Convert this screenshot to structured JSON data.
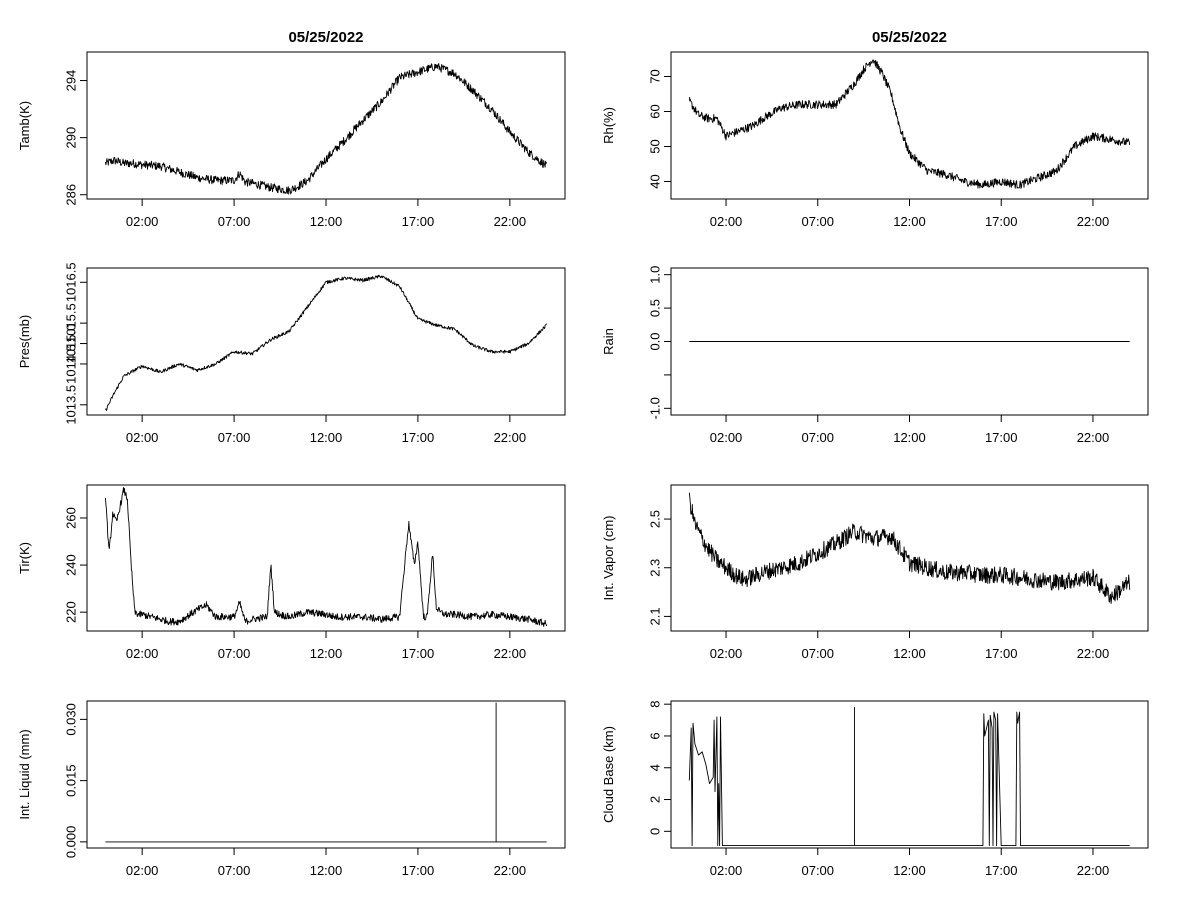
{
  "figure": {
    "date_title": "05/25/2022",
    "time_ticks": [
      "02:00",
      "07:00",
      "12:00",
      "17:00",
      "22:00"
    ]
  },
  "chart_data": [
    {
      "id": "tamb",
      "type": "line",
      "title": "05/25/2022",
      "ylabel": "Tamb(K)",
      "xlim": [
        -1,
        25
      ],
      "ylim": [
        285.7,
        296.0
      ],
      "yticks": [
        286,
        290,
        294
      ],
      "ytick_labels": [
        "286",
        "290",
        "294"
      ],
      "x": [
        0,
        0.5,
        1,
        1.5,
        2,
        3,
        4,
        5,
        6,
        7,
        7.3,
        7.6,
        8,
        9,
        10,
        10.5,
        11,
        12,
        13,
        14,
        15,
        16,
        17,
        18,
        19,
        20,
        21,
        22,
        23,
        24
      ],
      "values": [
        288.2,
        288.4,
        288.2,
        288.2,
        288.1,
        288.0,
        287.6,
        287.2,
        287.0,
        287.0,
        287.5,
        286.9,
        286.8,
        286.5,
        286.3,
        286.6,
        287.0,
        288.5,
        289.8,
        291.2,
        292.5,
        294.2,
        294.6,
        295.0,
        294.5,
        293.3,
        292.0,
        290.4,
        289.0,
        288.0
      ],
      "noise": 0.3
    },
    {
      "id": "rh",
      "type": "line",
      "title": "05/25/2022",
      "ylabel": "Rh(%)",
      "xlim": [
        -1,
        25
      ],
      "ylim": [
        35,
        77
      ],
      "yticks": [
        40,
        50,
        60,
        70
      ],
      "ytick_labels": [
        "40",
        "50",
        "60",
        "70"
      ],
      "x": [
        0,
        0.5,
        1,
        1.5,
        2,
        2.5,
        3,
        3.5,
        4,
        5,
        6,
        7,
        8,
        9,
        9.5,
        10,
        10.5,
        11,
        11.5,
        12,
        13,
        14,
        15,
        16,
        17,
        18,
        19,
        20,
        21,
        22,
        23,
        24
      ],
      "values": [
        63,
        59,
        58,
        58,
        53,
        54,
        55,
        56,
        58,
        61,
        62,
        62,
        62,
        68,
        72,
        75,
        71,
        65,
        55,
        48,
        43,
        42,
        40,
        39,
        40,
        39,
        41,
        43,
        50,
        53,
        52,
        51
      ],
      "noise": 1.2
    },
    {
      "id": "pres",
      "type": "line",
      "title": "",
      "ylabel": "Pres(mb)",
      "xlim": [
        -1,
        25
      ],
      "ylim": [
        1013.25,
        1016.85
      ],
      "yticks": [
        1013.5,
        1015.0,
        1016.5
      ],
      "ytick_labels": [
        "1013.5",
        "1015.0",
        "1016.5"
      ],
      "yticks_minor": [
        1014.5,
        1015.5
      ],
      "ytick_labels_minor": [
        "1014.5",
        "1015.5"
      ],
      "x": [
        0,
        0.5,
        1,
        2,
        3,
        4,
        5,
        6,
        7,
        8,
        9,
        10,
        11,
        12,
        13,
        14,
        15,
        16,
        17,
        18,
        19,
        20,
        21,
        22,
        23,
        24
      ],
      "values": [
        1013.35,
        1013.8,
        1014.2,
        1014.45,
        1014.3,
        1014.5,
        1014.35,
        1014.5,
        1014.8,
        1014.75,
        1015.1,
        1015.3,
        1015.9,
        1016.5,
        1016.6,
        1016.55,
        1016.65,
        1016.4,
        1015.6,
        1015.45,
        1015.35,
        1014.95,
        1014.8,
        1014.8,
        1015.0,
        1015.45
      ],
      "noise": 0.04
    },
    {
      "id": "rain",
      "type": "line",
      "title": "",
      "ylabel": "Rain",
      "xlim": [
        -1,
        25
      ],
      "ylim": [
        -1.1,
        1.1
      ],
      "yticks": [
        -1.0,
        -0.5,
        0.0,
        0.5,
        1.0
      ],
      "ytick_labels": [
        "-1.0",
        "",
        "0.0",
        "0.5",
        "1.0"
      ],
      "ytick_labels_right": [
        "",
        "",
        "",
        "",
        ""
      ],
      "x": [
        0,
        24
      ],
      "values": [
        0,
        0
      ],
      "noise": 0
    },
    {
      "id": "tir",
      "type": "line",
      "title": "",
      "ylabel": "Tir(K)",
      "xlim": [
        -1,
        25
      ],
      "ylim": [
        212,
        274
      ],
      "yticks": [
        220,
        240,
        260
      ],
      "ytick_labels": [
        "220",
        "240",
        "260"
      ],
      "x": [
        0,
        0.2,
        0.4,
        0.6,
        0.8,
        1.0,
        1.2,
        1.4,
        1.6,
        1.8,
        2.0,
        2.5,
        3,
        3.5,
        4,
        5,
        5.5,
        6,
        7,
        7.3,
        7.6,
        8,
        8.8,
        9,
        9.2,
        9.5,
        10,
        11,
        12,
        12.5,
        13,
        14,
        15,
        16,
        16.5,
        16.8,
        17,
        17.3,
        17.5,
        17.8,
        18,
        18.2,
        18.5,
        19,
        20,
        21,
        22,
        23,
        24
      ],
      "values": [
        270,
        245,
        262,
        258,
        265,
        272,
        268,
        240,
        220,
        219,
        219,
        218,
        217,
        216,
        216,
        221,
        223,
        218,
        218,
        224,
        216,
        217,
        218,
        240,
        220,
        219,
        218,
        220,
        219,
        218,
        218,
        218,
        217,
        218,
        258,
        240,
        250,
        218,
        218,
        245,
        222,
        220,
        219,
        219,
        218,
        219,
        218,
        217,
        215
      ],
      "noise": 1.5
    },
    {
      "id": "vapor",
      "type": "line",
      "title": "",
      "ylabel": "Int. Vapor (cm)",
      "xlim": [
        -1,
        25
      ],
      "ylim": [
        2.04,
        2.64
      ],
      "yticks": [
        2.1,
        2.3,
        2.5
      ],
      "ytick_labels": [
        "2.1",
        "2.3",
        "2.5"
      ],
      "x": [
        0,
        0.3,
        0.7,
        1,
        1.5,
        2,
        2.5,
        3,
        4,
        5,
        6,
        7,
        8,
        9,
        10,
        11,
        12,
        13,
        14,
        15,
        16,
        17,
        18,
        19,
        20,
        21,
        22,
        22.5,
        23,
        24
      ],
      "values": [
        2.58,
        2.48,
        2.42,
        2.38,
        2.33,
        2.3,
        2.27,
        2.25,
        2.28,
        2.3,
        2.32,
        2.36,
        2.4,
        2.45,
        2.42,
        2.43,
        2.32,
        2.3,
        2.28,
        2.28,
        2.27,
        2.27,
        2.26,
        2.25,
        2.24,
        2.25,
        2.26,
        2.22,
        2.18,
        2.24
      ],
      "noise": 0.035
    },
    {
      "id": "liquid",
      "type": "line",
      "title": "",
      "ylabel": "Int. Liquid (mm)",
      "xlim": [
        -1,
        25
      ],
      "ylim": [
        -0.0015,
        0.0345
      ],
      "yticks": [
        0.0,
        0.015,
        0.03
      ],
      "ytick_labels": [
        "0.000",
        "0.015",
        "0.030"
      ],
      "x": [
        0,
        21.25,
        21.25,
        21.25,
        24
      ],
      "values": [
        0,
        0,
        0.034,
        0,
        0
      ],
      "noise": 0
    },
    {
      "id": "cloud",
      "type": "line",
      "title": "",
      "ylabel": "Cloud Base (km)",
      "xlim": [
        -1,
        25
      ],
      "ylim": [
        -1.05,
        8.2
      ],
      "yticks": [
        0,
        2,
        4,
        6,
        8
      ],
      "ytick_labels": [
        "0",
        "2",
        "4",
        "6",
        "8"
      ],
      "x": [
        0,
        0.1,
        0.15,
        0.2,
        0.3,
        0.5,
        0.7,
        0.9,
        1.1,
        1.3,
        1.35,
        1.4,
        1.5,
        1.55,
        1.6,
        1.65,
        1.7,
        1.8,
        9.0,
        9.0,
        9.0,
        16.0,
        16.05,
        16.1,
        16.3,
        16.35,
        16.4,
        16.5,
        16.55,
        16.6,
        16.7,
        16.75,
        16.8,
        17.0,
        17.05,
        17.8,
        17.85,
        17.9,
        18.0,
        18.05,
        18.1,
        24
      ],
      "values": [
        3.2,
        6.5,
        -0.9,
        6.8,
        5.5,
        4.8,
        5.0,
        4.2,
        3.0,
        3.4,
        7.0,
        2.5,
        7.2,
        -0.9,
        3.0,
        -0.9,
        7.2,
        -0.9,
        -0.9,
        7.8,
        -0.9,
        -0.9,
        7.4,
        6.0,
        7.0,
        -0.9,
        7.3,
        6.5,
        -0.9,
        7.5,
        7.0,
        -0.9,
        7.4,
        -0.9,
        -0.9,
        -0.9,
        7.5,
        6.8,
        7.5,
        -0.9,
        -0.9,
        -0.9
      ],
      "noise": 0
    }
  ]
}
